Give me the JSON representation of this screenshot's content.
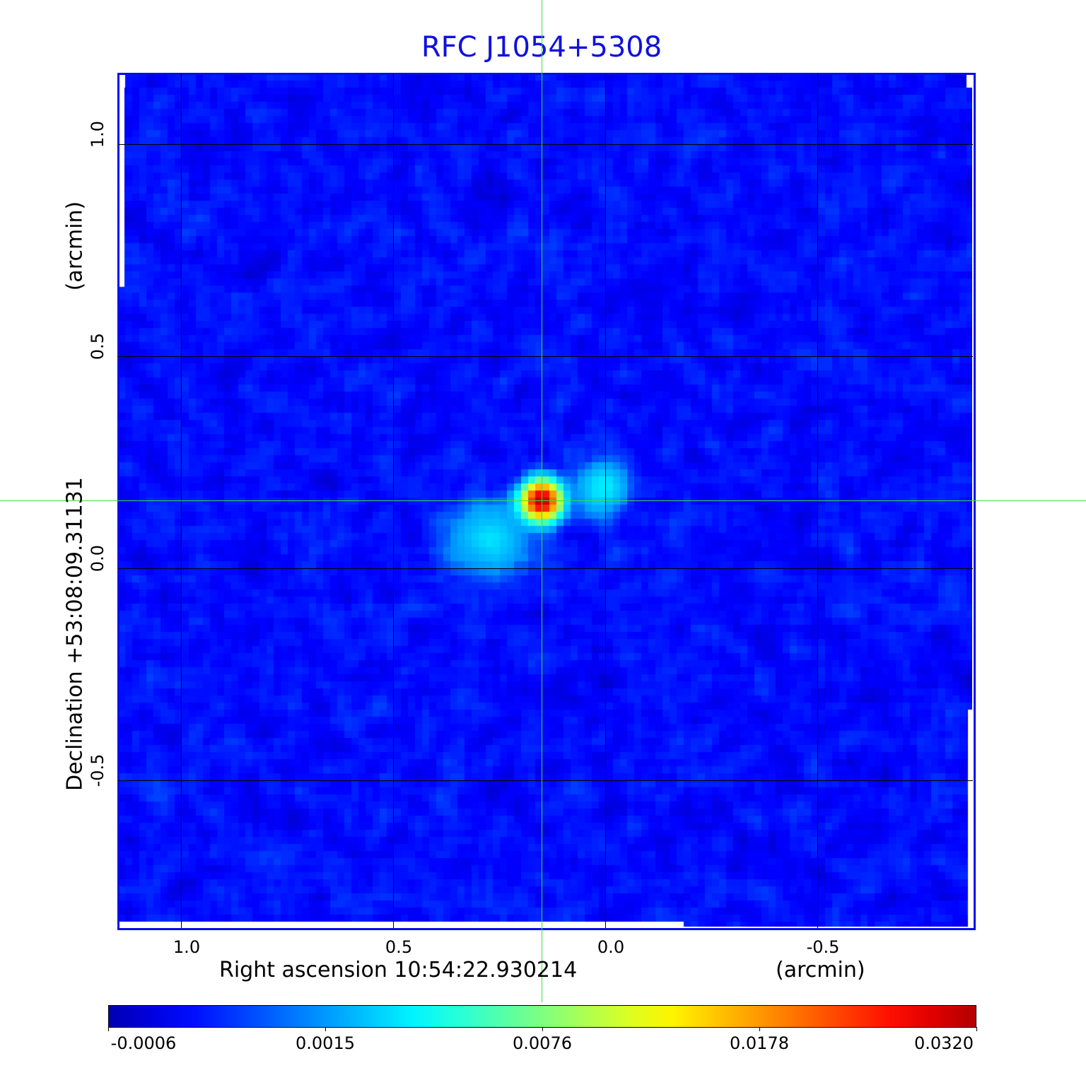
{
  "chart_data": {
    "type": "heatmap",
    "title": "RFC J1054+5308",
    "xlabel": "Right ascension  10:54:22.930214",
    "xunit": "(arcmin)",
    "ylabel": "Declination  +53:08:09.31131",
    "yunit": "(arcmin)",
    "x_ticks": [
      "1.0",
      "0.5",
      "0.0",
      "-0.5"
    ],
    "x_tick_values": [
      1.0,
      0.5,
      0.0,
      -0.5
    ],
    "y_ticks": [
      "1.0",
      "0.5",
      "0.0",
      "-0.5"
    ],
    "y_tick_values": [
      1.0,
      0.5,
      0.0,
      -0.5
    ],
    "xlim": [
      1.15,
      -0.87
    ],
    "ylim": [
      -0.85,
      1.17
    ],
    "grid": true,
    "colormap": "jet",
    "colorbar": {
      "ticks": [
        "-0.0006",
        "0.0015",
        "0.0076",
        "0.0178",
        "0.0320"
      ],
      "tick_values": [
        -0.0006,
        0.0015,
        0.0076,
        0.0178,
        0.032
      ],
      "placement": "bottom"
    },
    "crosshair": {
      "x": 0.15,
      "y": 0.16,
      "color": "#3ce03c"
    },
    "components": [
      {
        "name": "core",
        "x": 0.15,
        "y": 0.16,
        "peak": 0.032,
        "sigma": 0.028
      },
      {
        "name": "southwest-lobe",
        "x": 0.27,
        "y": 0.07,
        "peak": 0.0032,
        "sigma": 0.06
      },
      {
        "name": "northeast-lobe",
        "x": 0.01,
        "y": 0.19,
        "peak": 0.0036,
        "sigma": 0.04
      }
    ],
    "noise_rms": 0.0004,
    "frame_color": "#0a0aee",
    "title_color": "#1010e0"
  }
}
